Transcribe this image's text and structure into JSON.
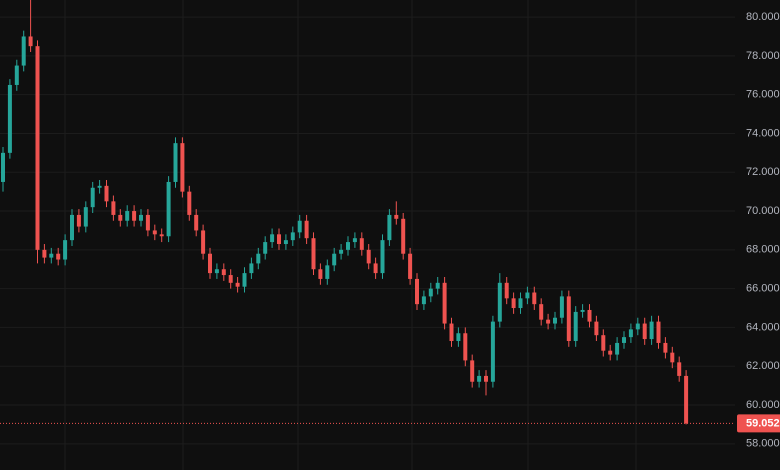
{
  "chart_data": {
    "type": "candlestick",
    "open": [
      71.5,
      73,
      76.5,
      77.5,
      79,
      78.5,
      68,
      67.6,
      67.8,
      67.5,
      68.5,
      69.8,
      69.2,
      70.2,
      71.2,
      71.3,
      70.5,
      69.8,
      69.5,
      70,
      69.5,
      69.8,
      69,
      68.8,
      68.7,
      71.5,
      73.5,
      71,
      69.8,
      69,
      67.8,
      66.8,
      67,
      66.7,
      66.3,
      66.1,
      66.8,
      67.3,
      67.8,
      68.4,
      68.8,
      68.3,
      68.5,
      68.9,
      69.5,
      68.6,
      67,
      66.5,
      67.2,
      67.8,
      68,
      68.4,
      68.6,
      68,
      67.3,
      66.8,
      68.5,
      69.8,
      69.6,
      67.8,
      66.5,
      65.2,
      65.6,
      66,
      66.3,
      64.2,
      63.3,
      63.7,
      62.3,
      61.2,
      61.5,
      61.2,
      64.3,
      66.3,
      65.5,
      65,
      65.5,
      65.8,
      65.2,
      64.4,
      64.2,
      64.5,
      65.6,
      63.3,
      64.8,
      64.9,
      64.3,
      63.6,
      62.8,
      62.6,
      63.2,
      63.5,
      63.9,
      64.2,
      63.4,
      64.3,
      63.2,
      62.7,
      62.2,
      61.5
    ],
    "high": [
      73.3,
      76.8,
      77.8,
      79.3,
      80.9,
      78.8,
      68.3,
      68.1,
      68.1,
      68.8,
      70.1,
      70.1,
      70.5,
      71.5,
      71.6,
      71.6,
      70.8,
      70.1,
      70.3,
      70.3,
      70.1,
      70.1,
      69.3,
      69.1,
      71.8,
      73.8,
      73.8,
      71.3,
      70.1,
      69.3,
      68.1,
      67.3,
      67.3,
      67,
      66.6,
      67.1,
      67.6,
      68.1,
      68.7,
      69.1,
      69.1,
      68.8,
      69.2,
      69.8,
      69.8,
      68.9,
      67.3,
      67.5,
      68.1,
      68.3,
      68.7,
      68.9,
      68.9,
      68.3,
      67.6,
      68.8,
      70.1,
      70.5,
      69.9,
      68.1,
      66.8,
      65.9,
      66.3,
      66.6,
      66.6,
      64.5,
      64,
      64,
      62.6,
      61.8,
      61.8,
      64.6,
      66.8,
      66.6,
      65.8,
      65.8,
      66.1,
      66.1,
      65.5,
      64.7,
      64.8,
      65.9,
      65.9,
      65.1,
      65.2,
      65.2,
      64.6,
      63.9,
      63.1,
      63.5,
      63.8,
      64.2,
      64.5,
      64.5,
      64.6,
      64.6,
      63.5,
      63,
      62.5,
      61.8
    ],
    "low": [
      71,
      72.7,
      76.2,
      77.2,
      78.2,
      67.3,
      67.3,
      67.3,
      67.2,
      67.2,
      68.2,
      68.9,
      68.9,
      69.9,
      70.9,
      70.2,
      69.5,
      69.2,
      69.2,
      69.2,
      69.2,
      68.7,
      68.5,
      68.4,
      68.4,
      71.2,
      70.7,
      69.5,
      68.7,
      67.5,
      66.5,
      66.5,
      66.4,
      66,
      65.8,
      65.8,
      66.5,
      67,
      67.5,
      68.1,
      68,
      68,
      68.2,
      68.6,
      68.3,
      66.7,
      66.2,
      66.2,
      66.9,
      67.5,
      67.7,
      68.1,
      67.7,
      67,
      66.5,
      66.5,
      68.2,
      69.3,
      67.5,
      66.2,
      64.9,
      64.9,
      65.3,
      65.7,
      63.9,
      63,
      63,
      62,
      60.9,
      60.9,
      60.5,
      60.9,
      64,
      65.2,
      64.7,
      64.7,
      65.2,
      64.9,
      64.1,
      63.9,
      63.9,
      64.2,
      63,
      63,
      64.5,
      64,
      63.3,
      62.5,
      62.3,
      62.3,
      62.9,
      63.2,
      63.6,
      63.1,
      63.1,
      62.9,
      62.4,
      61.9,
      61.2,
      59
    ],
    "close": [
      73,
      76.5,
      77.5,
      79,
      78.5,
      68,
      67.6,
      67.8,
      67.5,
      68.5,
      69.8,
      69.2,
      70.2,
      71.2,
      71.3,
      70.5,
      69.8,
      69.5,
      70,
      69.5,
      69.8,
      69,
      68.8,
      68.7,
      71.5,
      73.5,
      71,
      69.8,
      69,
      67.8,
      66.8,
      67,
      66.7,
      66.3,
      66.1,
      66.8,
      67.3,
      67.8,
      68.4,
      68.8,
      68.3,
      68.5,
      68.9,
      69.5,
      68.6,
      67,
      66.5,
      67.2,
      67.8,
      68,
      68.4,
      68.6,
      68,
      67.3,
      66.8,
      68.5,
      69.8,
      69.6,
      67.8,
      66.5,
      65.2,
      65.6,
      66,
      66.3,
      64.2,
      63.3,
      63.7,
      62.3,
      61.2,
      61.5,
      61.2,
      64.3,
      66.3,
      65.5,
      65,
      65.5,
      65.8,
      65.2,
      64.4,
      64.2,
      64.5,
      65.6,
      63.3,
      64.8,
      64.9,
      64.3,
      63.6,
      62.8,
      62.6,
      63.2,
      63.5,
      63.9,
      64.2,
      63.4,
      64.3,
      63.2,
      62.7,
      62.2,
      61.5,
      59.052
    ],
    "up_color": "#26a69a",
    "down_color": "#ef5350",
    "ylim": [
      56.65,
      80.88
    ],
    "yticks": [
      {
        "value": 58,
        "label": "58.000"
      },
      {
        "value": 60,
        "label": "60.000"
      },
      {
        "value": 62,
        "label": "62.000"
      },
      {
        "value": 64,
        "label": "64.000"
      },
      {
        "value": 66,
        "label": "66.000"
      },
      {
        "value": 68,
        "label": "68.000"
      },
      {
        "value": 70,
        "label": "70.000"
      },
      {
        "value": 72,
        "label": "72.000"
      },
      {
        "value": 74,
        "label": "74.000"
      },
      {
        "value": 76,
        "label": "76.000"
      },
      {
        "value": 78,
        "label": "78.000"
      },
      {
        "value": 80,
        "label": "80.000"
      }
    ],
    "last_price": {
      "value": 59.052,
      "label": "59.052"
    },
    "grid": true
  }
}
